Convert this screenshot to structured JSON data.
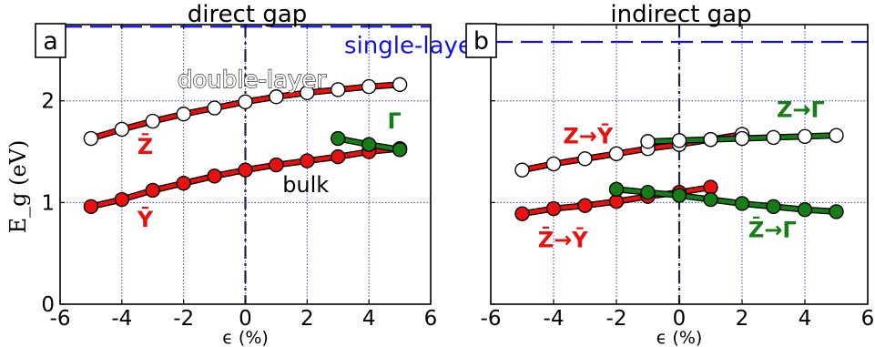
{
  "colors": {
    "red": "#e8110f",
    "green": "#177d17",
    "blue": "#1111ee",
    "grid": "#3a3ae0",
    "vline": "#222244"
  },
  "ylabel": "E_g (eV)",
  "chart_data": [
    {
      "type": "line",
      "panel_label": "a",
      "title": "direct gap",
      "xlabel": "ϵ (%)",
      "ylabel": "E_g (eV)",
      "xlim": [
        -6,
        6
      ],
      "ylim": [
        0,
        2.75
      ],
      "xticks": [
        "-6",
        "-4",
        "-2",
        "0",
        "2",
        "4",
        "6"
      ],
      "yticks": [
        "0",
        "1",
        "2"
      ],
      "grid": true,
      "vline_x": 0,
      "series": [
        {
          "name": "single-layer",
          "style": "dashed",
          "color": "blue",
          "x": [
            -6,
            6
          ],
          "y": [
            2.73,
            2.73
          ]
        },
        {
          "name": "double-layer",
          "style": "hollow",
          "color": "red",
          "x": [
            -5,
            -4,
            -3,
            -2,
            -1,
            0,
            1,
            2,
            3,
            4,
            5
          ],
          "y": [
            1.63,
            1.72,
            1.8,
            1.87,
            1.93,
            1.99,
            2.04,
            2.08,
            2.11,
            2.14,
            2.16
          ]
        },
        {
          "name": "bulk",
          "style": "filled",
          "color": "red",
          "x": [
            -5,
            -4,
            -3,
            -2,
            -1,
            0,
            1,
            2,
            3,
            4,
            5
          ],
          "y": [
            0.96,
            1.03,
            1.12,
            1.19,
            1.26,
            1.32,
            1.37,
            1.41,
            1.45,
            1.5,
            1.53
          ]
        },
        {
          "name": "Γ",
          "style": "filled",
          "color": "green",
          "x": [
            3,
            4,
            5
          ],
          "y": [
            1.63,
            1.57,
            1.52
          ]
        }
      ],
      "annotations": [
        {
          "text": "single-layer",
          "color": "blue",
          "x": 3.2,
          "y": 2.47,
          "size": 26,
          "bold": false
        },
        {
          "text": "double-layer",
          "color": "white",
          "x": -2.2,
          "y": 2.13,
          "size": 26,
          "bold": false,
          "outline": true
        },
        {
          "text": "bulk",
          "color": "black",
          "x": 1.2,
          "y": 1.1,
          "size": 24,
          "bold": false
        },
        {
          "text": "Z̄",
          "color": "red",
          "x": -3.5,
          "y": 1.48,
          "size": 24,
          "bold": true
        },
        {
          "text": "Ȳ",
          "color": "red",
          "x": -3.5,
          "y": 0.76,
          "size": 24,
          "bold": true
        },
        {
          "text": "Γ",
          "color": "green",
          "x": 4.6,
          "y": 1.73,
          "size": 24,
          "bold": true
        }
      ]
    },
    {
      "type": "line",
      "panel_label": "b",
      "title": "indirect gap",
      "xlabel": "ϵ (%)",
      "ylabel": "",
      "xlim": [
        -6,
        6
      ],
      "ylim": [
        0,
        2.75
      ],
      "xticks": [
        "-6",
        "-4",
        "-2",
        "0",
        "2",
        "4",
        "6"
      ],
      "yticks": [],
      "grid": true,
      "vline_x": 0,
      "series": [
        {
          "name": "single-layer",
          "style": "dashed",
          "color": "blue",
          "x": [
            -6,
            6
          ],
          "y": [
            2.58,
            2.58
          ]
        },
        {
          "name": "Z→Ȳ",
          "style": "hollow",
          "color": "red",
          "x": [
            -5,
            -4,
            -3,
            -2,
            -1,
            0,
            1,
            2
          ],
          "y": [
            1.32,
            1.38,
            1.43,
            1.48,
            1.53,
            1.57,
            1.62,
            1.67
          ]
        },
        {
          "name": "Z→Γ",
          "style": "hollow",
          "color": "green",
          "x": [
            -1,
            0,
            1,
            2,
            3,
            4,
            5
          ],
          "y": [
            1.6,
            1.61,
            1.62,
            1.63,
            1.64,
            1.65,
            1.66
          ]
        },
        {
          "name": "Z̄→Ȳ",
          "style": "filled",
          "color": "red",
          "x": [
            -5,
            -4,
            -3,
            -2,
            -1,
            0,
            1
          ],
          "y": [
            0.89,
            0.94,
            0.97,
            1.01,
            1.06,
            1.1,
            1.15
          ]
        },
        {
          "name": "Z̄→Γ",
          "style": "filled",
          "color": "green",
          "x": [
            -2,
            -1,
            0,
            1,
            2,
            3,
            4,
            5
          ],
          "y": [
            1.13,
            1.1,
            1.07,
            1.03,
            0.99,
            0.96,
            0.93,
            0.91
          ]
        }
      ],
      "annotations": [
        {
          "text": "Z→Ȳ",
          "color": "red",
          "x": -3.7,
          "y": 1.58,
          "size": 24,
          "bold": true
        },
        {
          "text": "Z→Γ",
          "color": "green",
          "x": 3.1,
          "y": 1.84,
          "size": 24,
          "bold": true
        },
        {
          "text": "Z̄→Ȳ",
          "color": "red",
          "x": -4.5,
          "y": 0.56,
          "size": 24,
          "bold": true
        },
        {
          "text": "Z̄→Γ",
          "color": "green",
          "x": 2.2,
          "y": 0.66,
          "size": 24,
          "bold": true
        }
      ]
    }
  ]
}
